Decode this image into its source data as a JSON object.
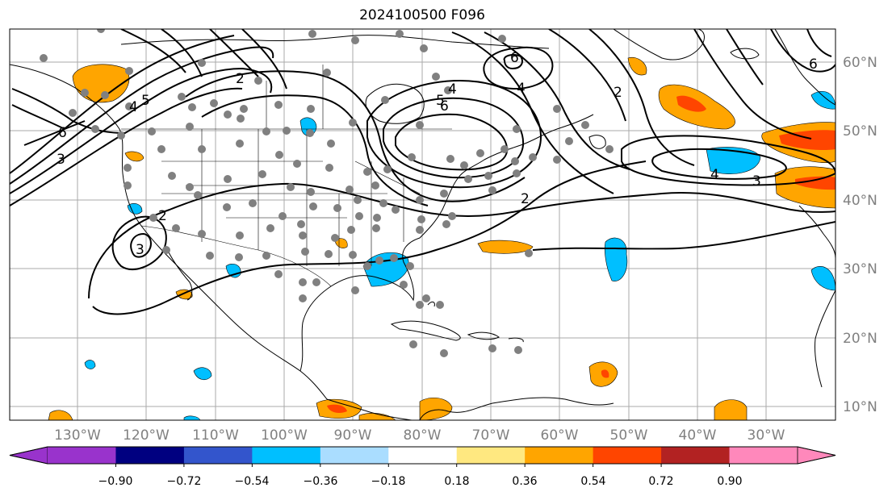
{
  "title": "2024100500 F096",
  "lat_labels": [
    "60°N",
    "50°N",
    "40°N",
    "30°N",
    "20°N",
    "10°N"
  ],
  "lon_labels": [
    "130°W",
    "120°W",
    "110°W",
    "100°W",
    "90°W",
    "80°W",
    "70°W",
    "60°W",
    "50°W",
    "40°W",
    "30°W"
  ],
  "colorbar": {
    "colors": [
      "#9933cc",
      "#000080",
      "#3355cc",
      "#00bfff",
      "#aaddff",
      "#ffffff",
      "#ffe880",
      "#ffa500",
      "#ff4500",
      "#b22222",
      "#ff88bb"
    ],
    "tick_labels": [
      "−0.90",
      "−0.72",
      "−0.54",
      "−0.36",
      "−0.18",
      "0.18",
      "0.36",
      "0.54",
      "0.72",
      "0.90"
    ],
    "extend_low_color": "#9933cc",
    "extend_high_color": "#ff88bb"
  },
  "contour_labels": [
    "2",
    "3",
    "4",
    "5",
    "6"
  ],
  "colors": {
    "station_dot": "#808080",
    "contour": "#000000",
    "coast": "#000000",
    "grid": "#aaaaaa",
    "positive_fill": "#ffa500",
    "strong_positive_fill": "#ff4500",
    "negative_fill": "#00bfff"
  }
}
